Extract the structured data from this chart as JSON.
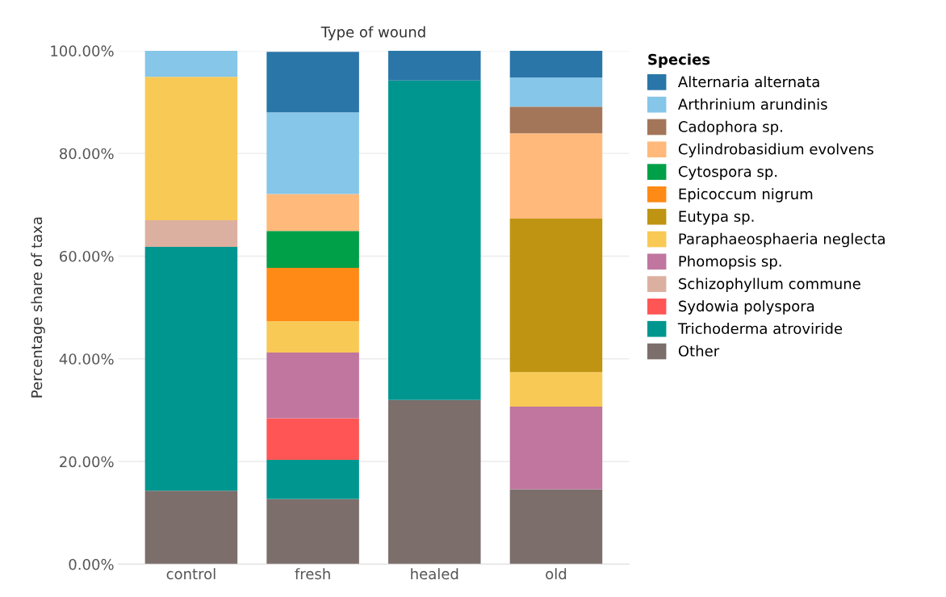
{
  "chart_data": {
    "type": "bar",
    "stacked": true,
    "title": "Type of wound",
    "ylabel": "Percentage share of taxa",
    "legend_title": "Species",
    "legend": "right",
    "grid": "y",
    "categories": [
      "control",
      "fresh",
      "healed",
      "old"
    ],
    "ylim": [
      0,
      100
    ],
    "yticks": [
      {
        "value": 0,
        "label": "0.00%"
      },
      {
        "value": 20,
        "label": "20.00%"
      },
      {
        "value": 40,
        "label": "40.00%"
      },
      {
        "value": 60,
        "label": "60.00%"
      },
      {
        "value": 80,
        "label": "80.00%"
      },
      {
        "value": 100,
        "label": "100.00%"
      }
    ],
    "series": [
      {
        "name": "Other",
        "color": "#7b6e6b",
        "values": [
          14.3,
          12.7,
          32.0,
          14.6
        ]
      },
      {
        "name": "Trichoderma atroviride",
        "color": "#009690",
        "values": [
          47.5,
          7.6,
          62.2,
          null
        ]
      },
      {
        "name": "Sydowia polyspora",
        "color": "#ff5555",
        "values": [
          null,
          8.1,
          null,
          null
        ]
      },
      {
        "name": "Schizophyllum commune",
        "color": "#dcb0a0",
        "values": [
          5.2,
          null,
          null,
          null
        ]
      },
      {
        "name": "Phomopsis sp.",
        "color": "#c0769f",
        "values": [
          null,
          12.8,
          null,
          16.1
        ]
      },
      {
        "name": "Paraphaeosphaeria neglecta",
        "color": "#f8c955",
        "values": [
          27.9,
          6.1,
          null,
          6.7
        ]
      },
      {
        "name": "Eutypa sp.",
        "color": "#bf9412",
        "values": [
          null,
          null,
          null,
          29.9
        ]
      },
      {
        "name": "Epicoccum nigrum",
        "color": "#ff8a16",
        "values": [
          null,
          10.4,
          null,
          null
        ]
      },
      {
        "name": "Cytospora sp.",
        "color": "#00a048",
        "values": [
          null,
          7.2,
          null,
          null
        ]
      },
      {
        "name": "Cylindrobasidium evolvens",
        "color": "#ffb97a",
        "values": [
          null,
          7.2,
          null,
          16.6
        ]
      },
      {
        "name": "Cadophora sp.",
        "color": "#a3765a",
        "values": [
          null,
          null,
          null,
          5.2
        ]
      },
      {
        "name": "Arthrinium arundinis",
        "color": "#86c6e8",
        "values": [
          5.1,
          15.9,
          null,
          5.7
        ]
      },
      {
        "name": "Alternaria alternata",
        "color": "#2a76a8",
        "values": [
          null,
          11.8,
          5.8,
          5.2
        ]
      }
    ]
  }
}
